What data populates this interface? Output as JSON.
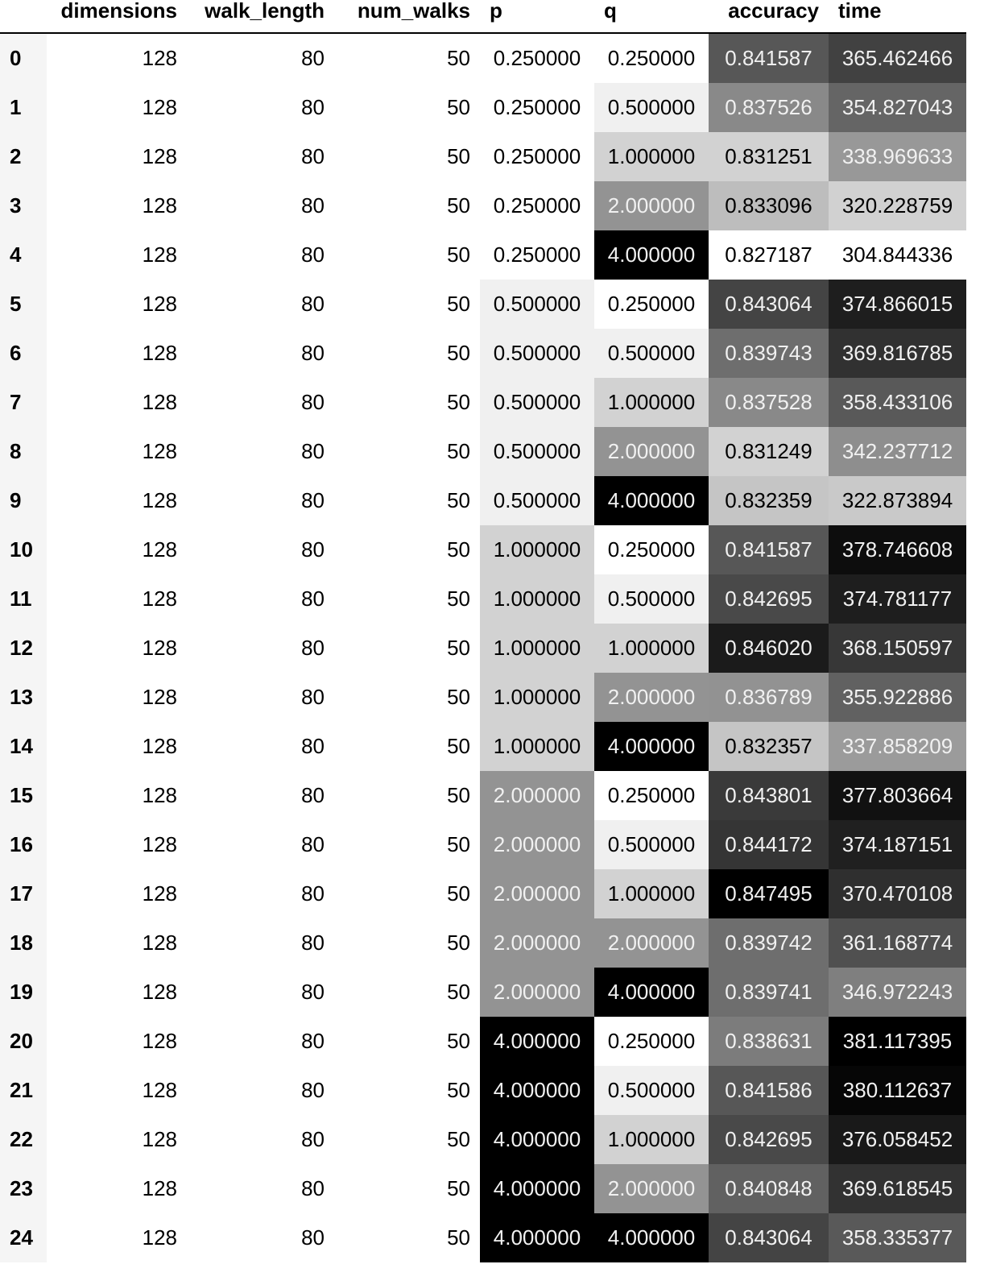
{
  "table": {
    "columns": [
      "",
      "dimensions",
      "walk_length",
      "num_walks",
      "p",
      "q",
      "accuracy",
      "time"
    ],
    "rows": [
      {
        "index": "0",
        "dimensions": "128",
        "walk_length": "80",
        "num_walks": "50",
        "p": "0.250000",
        "q": "0.250000",
        "accuracy": "0.841587",
        "time": "365.462466"
      },
      {
        "index": "1",
        "dimensions": "128",
        "walk_length": "80",
        "num_walks": "50",
        "p": "0.250000",
        "q": "0.500000",
        "accuracy": "0.837526",
        "time": "354.827043"
      },
      {
        "index": "2",
        "dimensions": "128",
        "walk_length": "80",
        "num_walks": "50",
        "p": "0.250000",
        "q": "1.000000",
        "accuracy": "0.831251",
        "time": "338.969633"
      },
      {
        "index": "3",
        "dimensions": "128",
        "walk_length": "80",
        "num_walks": "50",
        "p": "0.250000",
        "q": "2.000000",
        "accuracy": "0.833096",
        "time": "320.228759"
      },
      {
        "index": "4",
        "dimensions": "128",
        "walk_length": "80",
        "num_walks": "50",
        "p": "0.250000",
        "q": "4.000000",
        "accuracy": "0.827187",
        "time": "304.844336"
      },
      {
        "index": "5",
        "dimensions": "128",
        "walk_length": "80",
        "num_walks": "50",
        "p": "0.500000",
        "q": "0.250000",
        "accuracy": "0.843064",
        "time": "374.866015"
      },
      {
        "index": "6",
        "dimensions": "128",
        "walk_length": "80",
        "num_walks": "50",
        "p": "0.500000",
        "q": "0.500000",
        "accuracy": "0.839743",
        "time": "369.816785"
      },
      {
        "index": "7",
        "dimensions": "128",
        "walk_length": "80",
        "num_walks": "50",
        "p": "0.500000",
        "q": "1.000000",
        "accuracy": "0.837528",
        "time": "358.433106"
      },
      {
        "index": "8",
        "dimensions": "128",
        "walk_length": "80",
        "num_walks": "50",
        "p": "0.500000",
        "q": "2.000000",
        "accuracy": "0.831249",
        "time": "342.237712"
      },
      {
        "index": "9",
        "dimensions": "128",
        "walk_length": "80",
        "num_walks": "50",
        "p": "0.500000",
        "q": "4.000000",
        "accuracy": "0.832359",
        "time": "322.873894"
      },
      {
        "index": "10",
        "dimensions": "128",
        "walk_length": "80",
        "num_walks": "50",
        "p": "1.000000",
        "q": "0.250000",
        "accuracy": "0.841587",
        "time": "378.746608"
      },
      {
        "index": "11",
        "dimensions": "128",
        "walk_length": "80",
        "num_walks": "50",
        "p": "1.000000",
        "q": "0.500000",
        "accuracy": "0.842695",
        "time": "374.781177"
      },
      {
        "index": "12",
        "dimensions": "128",
        "walk_length": "80",
        "num_walks": "50",
        "p": "1.000000",
        "q": "1.000000",
        "accuracy": "0.846020",
        "time": "368.150597"
      },
      {
        "index": "13",
        "dimensions": "128",
        "walk_length": "80",
        "num_walks": "50",
        "p": "1.000000",
        "q": "2.000000",
        "accuracy": "0.836789",
        "time": "355.922886"
      },
      {
        "index": "14",
        "dimensions": "128",
        "walk_length": "80",
        "num_walks": "50",
        "p": "1.000000",
        "q": "4.000000",
        "accuracy": "0.832357",
        "time": "337.858209"
      },
      {
        "index": "15",
        "dimensions": "128",
        "walk_length": "80",
        "num_walks": "50",
        "p": "2.000000",
        "q": "0.250000",
        "accuracy": "0.843801",
        "time": "377.803664"
      },
      {
        "index": "16",
        "dimensions": "128",
        "walk_length": "80",
        "num_walks": "50",
        "p": "2.000000",
        "q": "0.500000",
        "accuracy": "0.844172",
        "time": "374.187151"
      },
      {
        "index": "17",
        "dimensions": "128",
        "walk_length": "80",
        "num_walks": "50",
        "p": "2.000000",
        "q": "1.000000",
        "accuracy": "0.847495",
        "time": "370.470108"
      },
      {
        "index": "18",
        "dimensions": "128",
        "walk_length": "80",
        "num_walks": "50",
        "p": "2.000000",
        "q": "2.000000",
        "accuracy": "0.839742",
        "time": "361.168774"
      },
      {
        "index": "19",
        "dimensions": "128",
        "walk_length": "80",
        "num_walks": "50",
        "p": "2.000000",
        "q": "4.000000",
        "accuracy": "0.839741",
        "time": "346.972243"
      },
      {
        "index": "20",
        "dimensions": "128",
        "walk_length": "80",
        "num_walks": "50",
        "p": "4.000000",
        "q": "0.250000",
        "accuracy": "0.838631",
        "time": "381.117395"
      },
      {
        "index": "21",
        "dimensions": "128",
        "walk_length": "80",
        "num_walks": "50",
        "p": "4.000000",
        "q": "0.500000",
        "accuracy": "0.841586",
        "time": "380.112637"
      },
      {
        "index": "22",
        "dimensions": "128",
        "walk_length": "80",
        "num_walks": "50",
        "p": "4.000000",
        "q": "1.000000",
        "accuracy": "0.842695",
        "time": "376.058452"
      },
      {
        "index": "23",
        "dimensions": "128",
        "walk_length": "80",
        "num_walks": "50",
        "p": "4.000000",
        "q": "2.000000",
        "accuracy": "0.840848",
        "time": "369.618545"
      },
      {
        "index": "24",
        "dimensions": "128",
        "walk_length": "80",
        "num_walks": "50",
        "p": "4.000000",
        "q": "4.000000",
        "accuracy": "0.843064",
        "time": "358.335377"
      }
    ]
  },
  "colors": {
    "index_background": "#f5f5f5",
    "gradient_low": "#ffffff",
    "gradient_high": "#000000",
    "text_dark": "#000000",
    "text_light": "#f1f1f1"
  },
  "gradient_columns": [
    "p",
    "q",
    "accuracy",
    "time"
  ]
}
